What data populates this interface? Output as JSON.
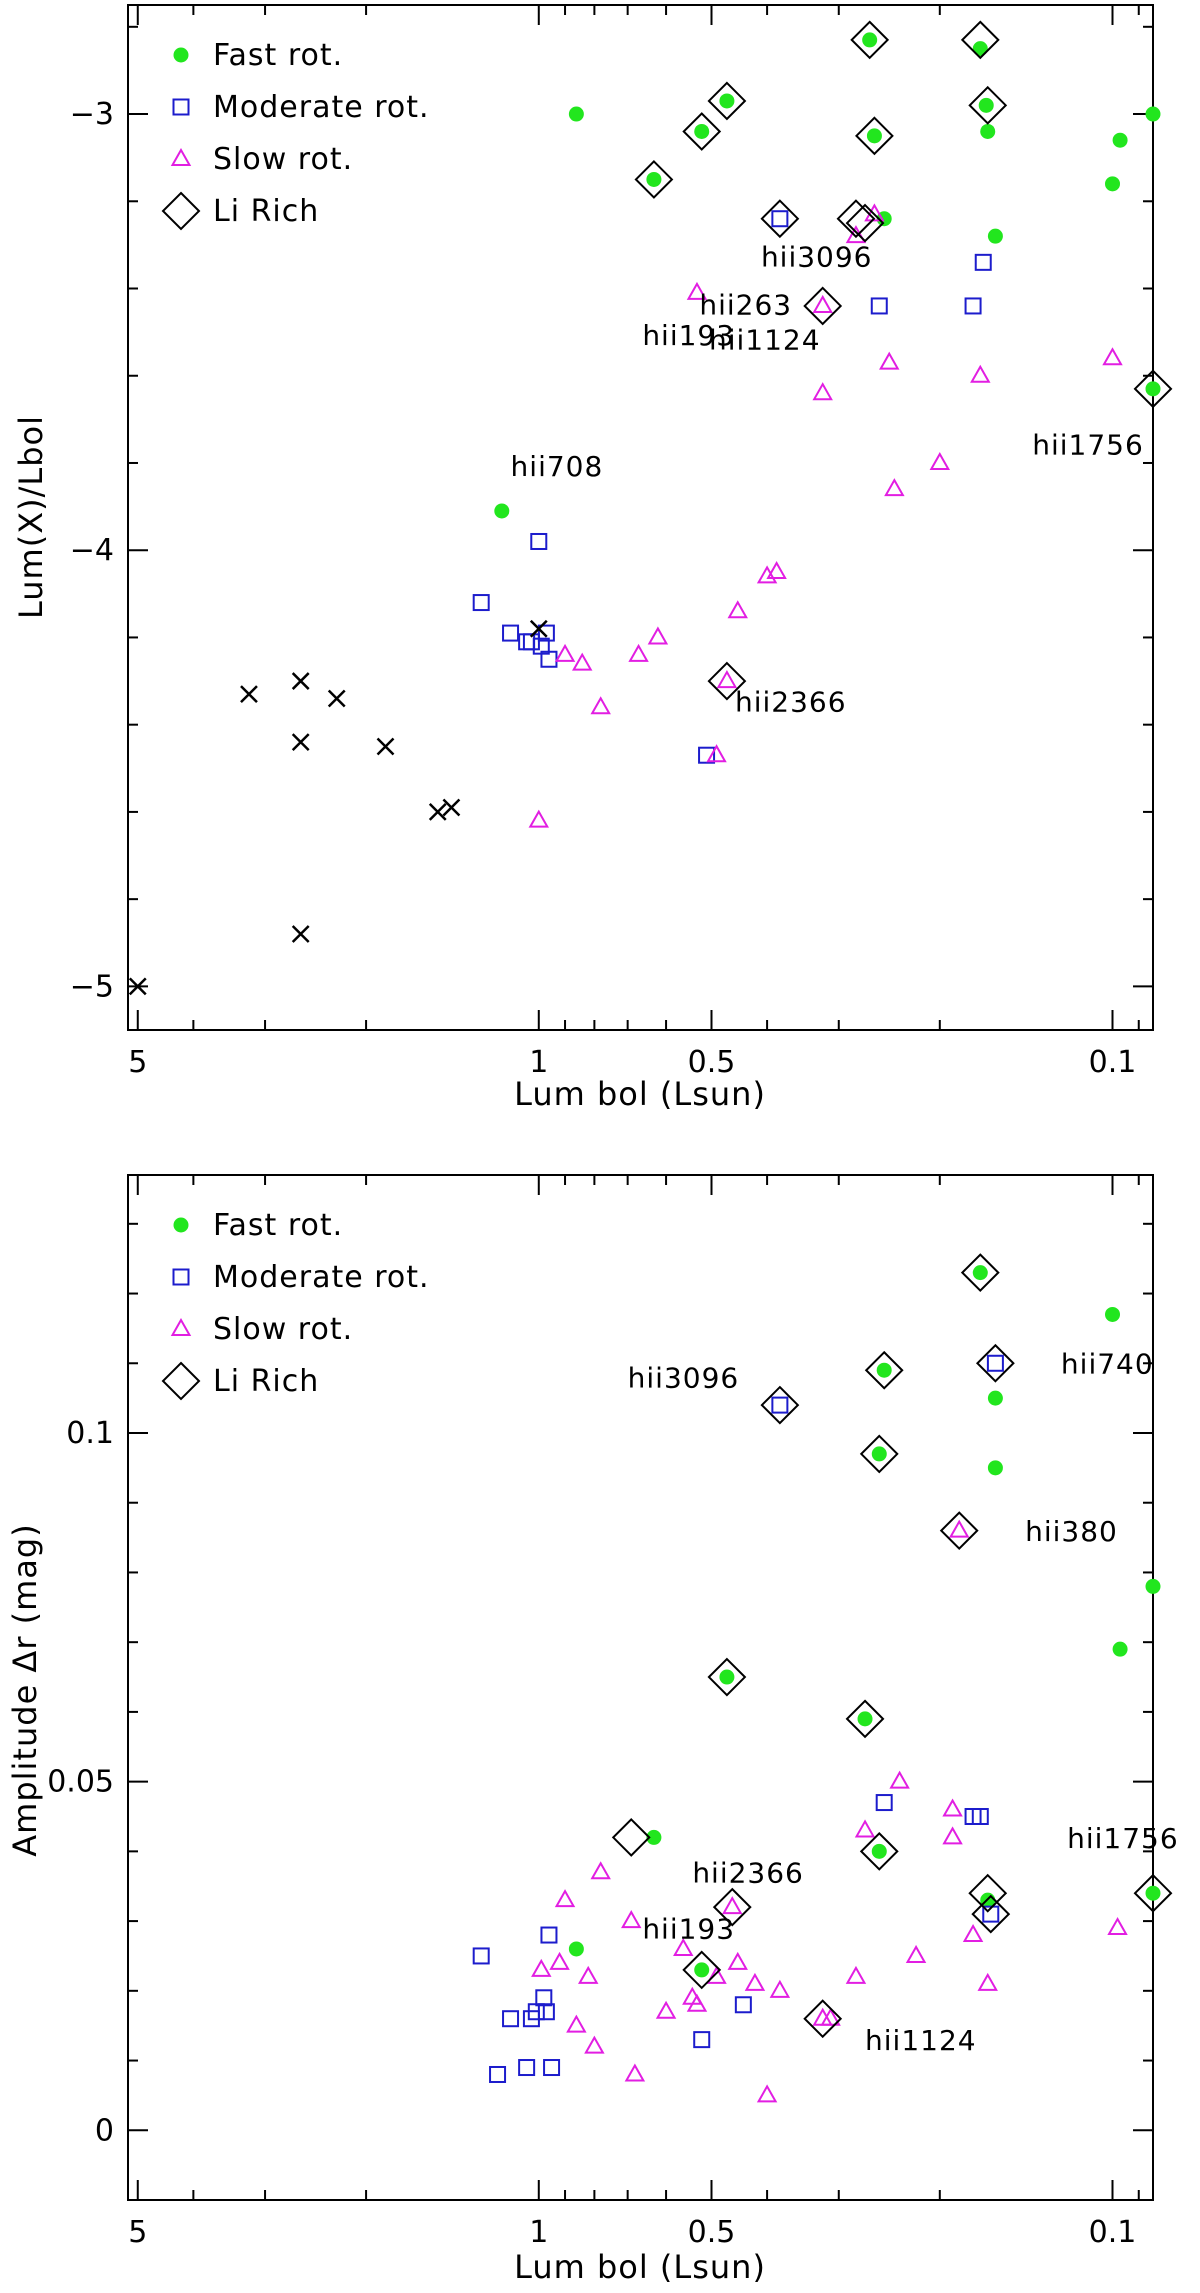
{
  "colors": {
    "fast": "#22e61e",
    "moderate": "#1c1ccc",
    "slow": "#e21ee2",
    "li": "#000000",
    "other": "#000000"
  },
  "legend": [
    {
      "key": "fast",
      "label": "Fast rot."
    },
    {
      "key": "moderate",
      "label": "Moderate rot."
    },
    {
      "key": "slow",
      "label": "Slow rot."
    },
    {
      "key": "li",
      "label": "Li Rich"
    }
  ],
  "chart_data": [
    {
      "type": "scatter",
      "xscale": "log",
      "xreverse": true,
      "xlim": [
        5.2,
        0.085
      ],
      "ylim": [
        -5.1,
        -2.75
      ],
      "xticks": [
        {
          "v": 5,
          "label": "5"
        },
        {
          "v": 1,
          "label": "1"
        },
        {
          "v": 0.5,
          "label": "0.5"
        },
        {
          "v": 0.1,
          "label": "0.1"
        }
      ],
      "yticks": [
        {
          "v": -5,
          "label": "−5"
        },
        {
          "v": -4,
          "label": "−4"
        },
        {
          "v": -3,
          "label": "−3"
        }
      ],
      "yminor_step": 0.2,
      "xlabel": "Lum bol (Lsun)",
      "ylabel": "Lum(X)/Lbol",
      "series": [
        {
          "name": "Fast rot.",
          "marker": "fast",
          "points": [
            [
              0.86,
              -3.0
            ],
            [
              0.52,
              -3.04
            ],
            [
              0.47,
              -2.97
            ],
            [
              0.63,
              -3.15
            ],
            [
              0.265,
              -2.83
            ],
            [
              0.26,
              -3.05
            ],
            [
              0.17,
              -2.85
            ],
            [
              0.166,
              -2.98
            ],
            [
              0.165,
              -3.04
            ],
            [
              0.25,
              -3.24
            ],
            [
              0.16,
              -3.28
            ],
            [
              0.1,
              -3.16
            ],
            [
              0.097,
              -3.06
            ],
            [
              0.085,
              -3.0
            ],
            [
              0.085,
              -3.63
            ],
            [
              1.16,
              -3.91
            ]
          ]
        },
        {
          "name": "Moderate rot.",
          "marker": "moderate",
          "points": [
            [
              1.0,
              -3.98
            ],
            [
              1.26,
              -4.12
            ],
            [
              1.12,
              -4.19
            ],
            [
              1.05,
              -4.21
            ],
            [
              1.03,
              -4.21
            ],
            [
              0.99,
              -4.22
            ],
            [
              0.97,
              -4.19
            ],
            [
              0.96,
              -4.25
            ],
            [
              0.51,
              -4.47
            ],
            [
              0.38,
              -3.24
            ],
            [
              0.255,
              -3.44
            ],
            [
              0.175,
              -3.44
            ],
            [
              0.168,
              -3.34
            ]
          ]
        },
        {
          "name": "Slow rot.",
          "marker": "slow",
          "points": [
            [
              1.0,
              -4.62
            ],
            [
              0.9,
              -4.24
            ],
            [
              0.84,
              -4.26
            ],
            [
              0.78,
              -4.36
            ],
            [
              0.67,
              -4.24
            ],
            [
              0.62,
              -4.2
            ],
            [
              0.53,
              -3.41
            ],
            [
              0.49,
              -4.47
            ],
            [
              0.45,
              -4.14
            ],
            [
              0.4,
              -4.06
            ],
            [
              0.385,
              -4.05
            ],
            [
              0.32,
              -3.64
            ],
            [
              0.32,
              -3.44
            ],
            [
              0.28,
              -3.28
            ],
            [
              0.26,
              -3.23
            ],
            [
              0.245,
              -3.57
            ],
            [
              0.24,
              -3.86
            ],
            [
              0.2,
              -3.8
            ],
            [
              0.17,
              -3.6
            ],
            [
              0.1,
              -3.56
            ],
            [
              0.47,
              -4.3
            ]
          ]
        },
        {
          "name": "Li Rich",
          "marker": "li",
          "points": [
            [
              0.63,
              -3.15
            ],
            [
              0.52,
              -3.04
            ],
            [
              0.47,
              -2.97
            ],
            [
              0.38,
              -3.24
            ],
            [
              0.32,
              -3.44
            ],
            [
              0.28,
              -3.24
            ],
            [
              0.27,
              -3.25
            ],
            [
              0.265,
              -2.83
            ],
            [
              0.26,
              -3.05
            ],
            [
              0.17,
              -2.83
            ],
            [
              0.165,
              -2.98
            ],
            [
              0.085,
              -3.63
            ],
            [
              0.47,
              -4.3
            ]
          ]
        },
        {
          "name": "Other",
          "marker": "other",
          "points": [
            [
              5.0,
              -5.0
            ],
            [
              3.2,
              -4.33
            ],
            [
              2.6,
              -4.3
            ],
            [
              2.6,
              -4.44
            ],
            [
              2.6,
              -4.88
            ],
            [
              2.25,
              -4.34
            ],
            [
              1.85,
              -4.45
            ],
            [
              1.5,
              -4.6
            ],
            [
              1.42,
              -4.59
            ],
            [
              1.0,
              -4.18
            ]
          ]
        }
      ],
      "annotations": [
        {
          "text": "hii708",
          "x": 1.12,
          "y": -3.83,
          "anchor": "start"
        },
        {
          "text": "hii3096",
          "x": 0.41,
          "y": -3.35,
          "anchor": "start"
        },
        {
          "text": "hii263",
          "x": 0.525,
          "y": -3.46,
          "anchor": "start"
        },
        {
          "text": "hii193",
          "x": 0.66,
          "y": -3.53,
          "anchor": "start"
        },
        {
          "text": "hii1124",
          "x": 0.505,
          "y": -3.54,
          "anchor": "start"
        },
        {
          "text": "hii1756",
          "x": 0.138,
          "y": -3.78,
          "anchor": "start"
        },
        {
          "text": "hii2366",
          "x": 0.455,
          "y": -4.37,
          "anchor": "start"
        }
      ]
    },
    {
      "type": "scatter",
      "xscale": "log",
      "xreverse": true,
      "xlim": [
        5.2,
        0.085
      ],
      "ylim": [
        -0.01,
        0.137
      ],
      "xticks": [
        {
          "v": 5,
          "label": "5"
        },
        {
          "v": 1,
          "label": "1"
        },
        {
          "v": 0.5,
          "label": "0.5"
        },
        {
          "v": 0.1,
          "label": "0.1"
        }
      ],
      "yticks": [
        {
          "v": 0,
          "label": "0"
        },
        {
          "v": 0.05,
          "label": "0.05"
        },
        {
          "v": 0.1,
          "label": "0.1"
        }
      ],
      "yminor_step": 0.01,
      "xlabel": "Lum bol (Lsun)",
      "ylabel": "Amplitude Δr (mag)",
      "series": [
        {
          "name": "Fast rot.",
          "marker": "fast",
          "points": [
            [
              0.86,
              0.026
            ],
            [
              0.63,
              0.042
            ],
            [
              0.52,
              0.023
            ],
            [
              0.47,
              0.065
            ],
            [
              0.27,
              0.059
            ],
            [
              0.255,
              0.04
            ],
            [
              0.255,
              0.097
            ],
            [
              0.25,
              0.109
            ],
            [
              0.17,
              0.123
            ],
            [
              0.165,
              0.033
            ],
            [
              0.16,
              0.105
            ],
            [
              0.16,
              0.095
            ],
            [
              0.1,
              0.117
            ],
            [
              0.097,
              0.069
            ],
            [
              0.085,
              0.078
            ],
            [
              0.085,
              0.034
            ]
          ]
        },
        {
          "name": "Moderate rot.",
          "marker": "moderate",
          "points": [
            [
              1.26,
              0.025
            ],
            [
              1.18,
              0.008
            ],
            [
              1.12,
              0.016
            ],
            [
              1.05,
              0.009
            ],
            [
              1.03,
              0.016
            ],
            [
              1.01,
              0.017
            ],
            [
              0.98,
              0.019
            ],
            [
              0.97,
              0.017
            ],
            [
              0.96,
              0.028
            ],
            [
              0.95,
              0.009
            ],
            [
              0.52,
              0.013
            ],
            [
              0.44,
              0.018
            ],
            [
              0.38,
              0.104
            ],
            [
              0.25,
              0.047
            ],
            [
              0.175,
              0.045
            ],
            [
              0.17,
              0.045
            ],
            [
              0.16,
              0.11
            ],
            [
              0.163,
              0.031
            ]
          ]
        },
        {
          "name": "Slow rot.",
          "marker": "slow",
          "points": [
            [
              0.99,
              0.023
            ],
            [
              0.92,
              0.024
            ],
            [
              0.9,
              0.033
            ],
            [
              0.86,
              0.015
            ],
            [
              0.82,
              0.022
            ],
            [
              0.8,
              0.012
            ],
            [
              0.78,
              0.037
            ],
            [
              0.69,
              0.03
            ],
            [
              0.68,
              0.008
            ],
            [
              0.6,
              0.017
            ],
            [
              0.56,
              0.026
            ],
            [
              0.54,
              0.019
            ],
            [
              0.53,
              0.018
            ],
            [
              0.49,
              0.022
            ],
            [
              0.46,
              0.032
            ],
            [
              0.45,
              0.024
            ],
            [
              0.42,
              0.021
            ],
            [
              0.4,
              0.005
            ],
            [
              0.38,
              0.02
            ],
            [
              0.32,
              0.016
            ],
            [
              0.31,
              0.016
            ],
            [
              0.28,
              0.022
            ],
            [
              0.27,
              0.043
            ],
            [
              0.235,
              0.05
            ],
            [
              0.22,
              0.025
            ],
            [
              0.19,
              0.046
            ],
            [
              0.19,
              0.042
            ],
            [
              0.185,
              0.086
            ],
            [
              0.175,
              0.028
            ],
            [
              0.165,
              0.021
            ],
            [
              0.098,
              0.029
            ]
          ]
        },
        {
          "name": "Li Rich",
          "marker": "li",
          "points": [
            [
              0.69,
              0.042
            ],
            [
              0.52,
              0.023
            ],
            [
              0.47,
              0.065
            ],
            [
              0.46,
              0.032
            ],
            [
              0.38,
              0.104
            ],
            [
              0.32,
              0.016
            ],
            [
              0.27,
              0.059
            ],
            [
              0.255,
              0.04
            ],
            [
              0.255,
              0.097
            ],
            [
              0.25,
              0.109
            ],
            [
              0.185,
              0.086
            ],
            [
              0.17,
              0.123
            ],
            [
              0.16,
              0.11
            ],
            [
              0.165,
              0.034
            ],
            [
              0.163,
              0.031
            ],
            [
              0.085,
              0.034
            ]
          ]
        }
      ],
      "annotations": [
        {
          "text": "hii3096",
          "x": 0.7,
          "y": 0.1065,
          "anchor": "start"
        },
        {
          "text": "hii740",
          "x": 0.123,
          "y": 0.1085,
          "anchor": "start"
        },
        {
          "text": "hii380",
          "x": 0.142,
          "y": 0.0845,
          "anchor": "start"
        },
        {
          "text": "hii2366",
          "x": 0.54,
          "y": 0.0355,
          "anchor": "start"
        },
        {
          "text": "hii1756",
          "x": 0.12,
          "y": 0.0405,
          "anchor": "start"
        },
        {
          "text": "hii193",
          "x": 0.66,
          "y": 0.0275,
          "anchor": "start"
        },
        {
          "text": "hii1124",
          "x": 0.27,
          "y": 0.0115,
          "anchor": "start"
        }
      ]
    }
  ]
}
